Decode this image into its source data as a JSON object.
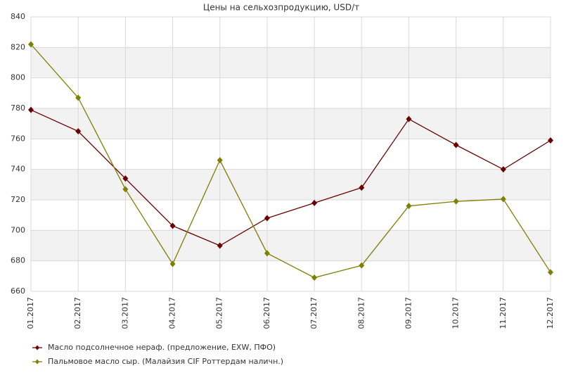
{
  "chart_data": {
    "type": "line",
    "title": "Цены на сельхозпродукцию, USD/т",
    "categories": [
      "01.2017",
      "02.2017",
      "03.2017",
      "04.2017",
      "05.2017",
      "06.2017",
      "07.2017",
      "08.2017",
      "09.2017",
      "10.2017",
      "11.2017",
      "12.2017"
    ],
    "series": [
      {
        "name": "Масло подсолнечное нераф. (предложение, EXW, ПФО)",
        "color": "#6b0000",
        "values": [
          779,
          765,
          734,
          703,
          690,
          708,
          718,
          728,
          773,
          756,
          740,
          759
        ]
      },
      {
        "name": "Пальмовое масло сыр. (Малайзия  CIF Роттердам наличн.)",
        "color": "#7f7f00",
        "values": [
          822,
          787,
          727,
          678,
          746,
          685,
          669,
          677,
          716,
          719,
          720.5,
          672.5
        ]
      }
    ],
    "ylim": [
      660,
      840
    ],
    "yticks": [
      660,
      680,
      700,
      720,
      740,
      760,
      780,
      800,
      820,
      840
    ],
    "grid": true,
    "legend": "bottom-left"
  }
}
